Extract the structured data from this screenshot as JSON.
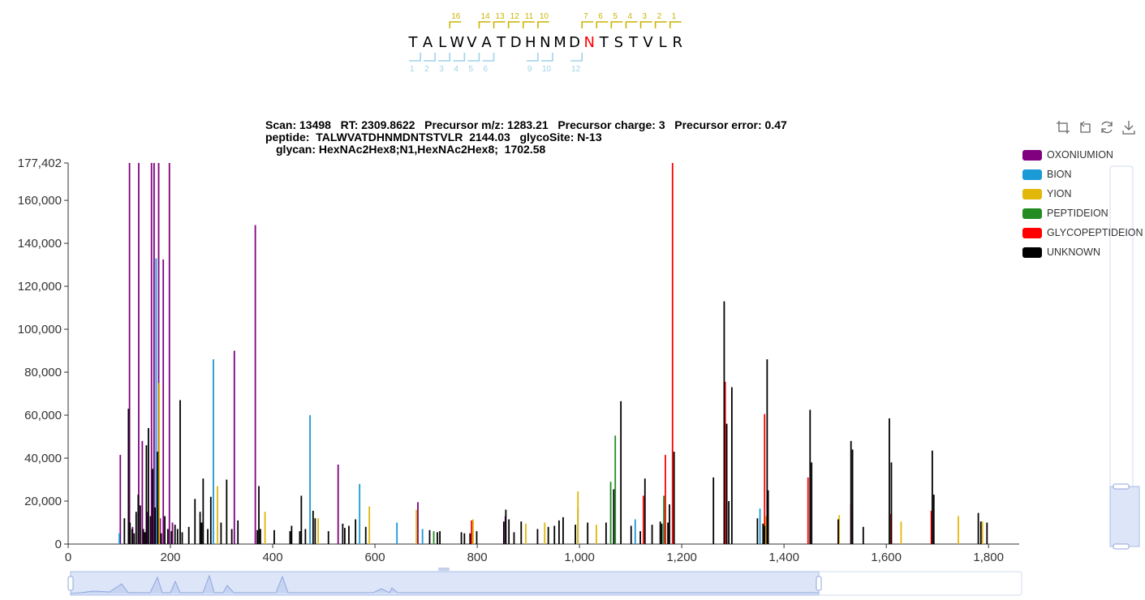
{
  "peptide": {
    "residues": [
      "T",
      "A",
      "L",
      "W",
      "V",
      "A",
      "T",
      "D",
      "H",
      "N",
      "M",
      "D",
      "N",
      "T",
      "S",
      "T",
      "V",
      "L",
      "R"
    ],
    "glyco_position": 13,
    "glyco_color": "#ff0000",
    "y_ions": [
      {
        "label": "16",
        "after": 3
      },
      {
        "label": "14",
        "after": 5
      },
      {
        "label": "13",
        "after": 6
      },
      {
        "label": "12",
        "after": 7
      },
      {
        "label": "11",
        "after": 8
      },
      {
        "label": "10",
        "after": 9
      },
      {
        "label": "7",
        "after": 12
      },
      {
        "label": "6",
        "after": 13
      },
      {
        "label": "5",
        "after": 14
      },
      {
        "label": "4",
        "after": 15
      },
      {
        "label": "3",
        "after": 16
      },
      {
        "label": "2",
        "after": 17
      },
      {
        "label": "1",
        "after": 18
      }
    ],
    "b_ions": [
      {
        "label": "1",
        "after": 1
      },
      {
        "label": "2",
        "after": 2
      },
      {
        "label": "3",
        "after": 3
      },
      {
        "label": "4",
        "after": 4
      },
      {
        "label": "5",
        "after": 5
      },
      {
        "label": "6",
        "after": 6
      },
      {
        "label": "9",
        "after": 9
      },
      {
        "label": "10",
        "after": 10
      },
      {
        "label": "12",
        "after": 12
      }
    ]
  },
  "title": {
    "line1": "Scan: 13498   RT: 2309.8622   Precursor m/z: 1283.21   Precursor charge: 3   Precursor error: 0.47",
    "line2": "peptide:  TALWVATDHNMDNTSTVLR  2144.03   glycoSite: N-13",
    "line3": "glycan: HexNAc2Hex8;N1,HexNAc2Hex8;  1702.58"
  },
  "legend": [
    {
      "name": "OXONIUMION",
      "color": "#800080"
    },
    {
      "name": "BION",
      "color": "#1a9ad6"
    },
    {
      "name": "YION",
      "color": "#e3b60a"
    },
    {
      "name": "PEPTIDEION",
      "color": "#228b22"
    },
    {
      "name": "GLYCOPEPTIDEION",
      "color": "#ff0000"
    },
    {
      "name": "UNKNOWN",
      "color": "#000000"
    }
  ],
  "toolbox": [
    "zoom-select-icon",
    "zoom-reset-icon",
    "restore-icon",
    "save-image-icon"
  ],
  "chart_data": {
    "type": "bar",
    "x_ticks": [
      0,
      200,
      400,
      600,
      800,
      1000,
      1200,
      1400,
      1600,
      1800
    ],
    "y_ticks": [
      0,
      20000,
      40000,
      60000,
      80000,
      100000,
      120000,
      140000,
      160000,
      177402
    ],
    "x_tick_labels": [
      "0",
      "200",
      "400",
      "600",
      "800",
      "1,000",
      "1,200",
      "1,400",
      "1,600",
      "1,800"
    ],
    "y_tick_labels": [
      "0",
      "20,000",
      "40,000",
      "60,000",
      "80,000",
      "100,000",
      "120,000",
      "140,000",
      "160,000",
      "177,402"
    ],
    "xlim": [
      0,
      1860
    ],
    "ylim": [
      0,
      177402
    ],
    "series": [
      {
        "name": "OXONIUMION",
        "color": "#800080",
        "points": [
          [
            102,
            41500
          ],
          [
            120,
            177402
          ],
          [
            126,
            8000
          ],
          [
            138,
            177402
          ],
          [
            145,
            48000
          ],
          [
            155,
            15000
          ],
          [
            163,
            177402
          ],
          [
            168,
            177402
          ],
          [
            177,
            177402
          ],
          [
            180,
            12000
          ],
          [
            186,
            132500
          ],
          [
            198,
            177402
          ],
          [
            204,
            10000
          ],
          [
            325,
            90000
          ],
          [
            366,
            148500
          ],
          [
            528,
            37000
          ],
          [
            684,
            19500
          ],
          [
            855,
            13000
          ]
        ]
      },
      {
        "name": "BION",
        "color": "#1a9ad6",
        "points": [
          [
            100,
            5000
          ],
          [
            172,
            133000
          ],
          [
            284,
            86000
          ],
          [
            473,
            60000
          ],
          [
            570,
            28000
          ],
          [
            643,
            10000
          ],
          [
            693,
            7000
          ],
          [
            997,
            17000
          ],
          [
            1109,
            11500
          ],
          [
            1353,
            16500
          ]
        ]
      },
      {
        "name": "YION",
        "color": "#e3b60a",
        "points": [
          [
            178,
            75000
          ],
          [
            292,
            27000
          ],
          [
            385,
            15000
          ],
          [
            489,
            12000
          ],
          [
            589,
            17500
          ],
          [
            681,
            16000
          ],
          [
            792,
            11500
          ],
          [
            895,
            9500
          ],
          [
            932,
            10000
          ],
          [
            997,
            24500
          ],
          [
            1033,
            9000
          ],
          [
            1365,
            13000
          ],
          [
            1508,
            13500
          ],
          [
            1629,
            10500
          ],
          [
            1741,
            13000
          ],
          [
            1788,
            10500
          ]
        ]
      },
      {
        "name": "PEPTIDEION",
        "color": "#228b22",
        "points": [
          [
            715,
            6000
          ],
          [
            1061,
            29000
          ],
          [
            1070,
            50500
          ],
          [
            1165,
            22500
          ]
        ]
      },
      {
        "name": "GLYCOPEPTIDEION",
        "color": "#ff0000",
        "points": [
          [
            789,
            11000
          ],
          [
            1125,
            22500
          ],
          [
            1168,
            41500
          ],
          [
            1182,
            177402
          ],
          [
            1285,
            75500
          ],
          [
            1362,
            60500
          ],
          [
            1447,
            31000
          ],
          [
            1531,
            18500
          ],
          [
            1609,
            14000
          ],
          [
            1688,
            15500
          ]
        ]
      },
      {
        "name": "UNKNOWN",
        "color": "#000000",
        "points": [
          [
            110,
            12000
          ],
          [
            118,
            63000
          ],
          [
            121,
            10000
          ],
          [
            125,
            7000
          ],
          [
            129,
            5000
          ],
          [
            133,
            15000
          ],
          [
            137,
            23000
          ],
          [
            141,
            18000
          ],
          [
            147,
            7000
          ],
          [
            150,
            5500
          ],
          [
            153,
            46000
          ],
          [
            157,
            54000
          ],
          [
            161,
            13000
          ],
          [
            165,
            35000
          ],
          [
            170,
            17000
          ],
          [
            175,
            43000
          ],
          [
            182,
            5000
          ],
          [
            189,
            13000
          ],
          [
            195,
            7000
          ],
          [
            202,
            6000
          ],
          [
            209,
            9000
          ],
          [
            214,
            7000
          ],
          [
            219,
            67000
          ],
          [
            223,
            5500
          ],
          [
            236,
            8000
          ],
          [
            248,
            21000
          ],
          [
            258,
            15000
          ],
          [
            261,
            10000
          ],
          [
            264,
            30500
          ],
          [
            273,
            7000
          ],
          [
            279,
            22000
          ],
          [
            299,
            10000
          ],
          [
            310,
            30000
          ],
          [
            320,
            7000
          ],
          [
            332,
            11000
          ],
          [
            370,
            6500
          ],
          [
            373,
            27000
          ],
          [
            376,
            7000
          ],
          [
            403,
            6500
          ],
          [
            434,
            6000
          ],
          [
            437,
            8500
          ],
          [
            453,
            6000
          ],
          [
            456,
            22500
          ],
          [
            464,
            7000
          ],
          [
            479,
            15500
          ],
          [
            483,
            12000
          ],
          [
            509,
            6000
          ],
          [
            537,
            9500
          ],
          [
            541,
            7500
          ],
          [
            549,
            8500
          ],
          [
            562,
            11500
          ],
          [
            582,
            8000
          ],
          [
            707,
            6500
          ],
          [
            722,
            5500
          ],
          [
            727,
            6000
          ],
          [
            769,
            5500
          ],
          [
            775,
            5000
          ],
          [
            786,
            5000
          ],
          [
            799,
            6000
          ],
          [
            852,
            10500
          ],
          [
            856,
            16000
          ],
          [
            862,
            11500
          ],
          [
            872,
            5500
          ],
          [
            886,
            10500
          ],
          [
            918,
            7000
          ],
          [
            939,
            8000
          ],
          [
            951,
            8500
          ],
          [
            960,
            11000
          ],
          [
            968,
            12500
          ],
          [
            992,
            9000
          ],
          [
            1016,
            10000
          ],
          [
            1052,
            10000
          ],
          [
            1067,
            25500
          ],
          [
            1081,
            66500
          ],
          [
            1101,
            8500
          ],
          [
            1119,
            6000
          ],
          [
            1128,
            30500
          ],
          [
            1142,
            9000
          ],
          [
            1158,
            10500
          ],
          [
            1161,
            9500
          ],
          [
            1173,
            10000
          ],
          [
            1176,
            18500
          ],
          [
            1185,
            43000
          ],
          [
            1262,
            31000
          ],
          [
            1283,
            113000
          ],
          [
            1288,
            56000
          ],
          [
            1292,
            20000
          ],
          [
            1298,
            73000
          ],
          [
            1348,
            12000
          ],
          [
            1359,
            9500
          ],
          [
            1362,
            8500
          ],
          [
            1367,
            86000
          ],
          [
            1369,
            25000
          ],
          [
            1451,
            62500
          ],
          [
            1454,
            38000
          ],
          [
            1506,
            11500
          ],
          [
            1531,
            48000
          ],
          [
            1534,
            44000
          ],
          [
            1555,
            8000
          ],
          [
            1606,
            58500
          ],
          [
            1610,
            38000
          ],
          [
            1690,
            43500
          ],
          [
            1693,
            23000
          ],
          [
            1780,
            14500
          ],
          [
            1785,
            10500
          ],
          [
            1797,
            10000
          ]
        ]
      }
    ]
  }
}
